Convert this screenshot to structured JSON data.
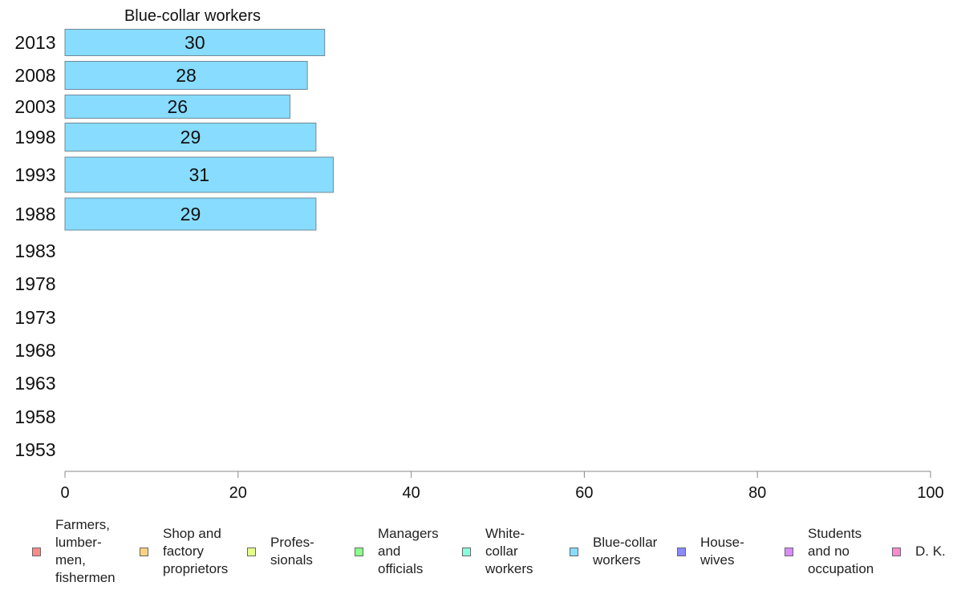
{
  "chart_data": {
    "type": "bar",
    "orientation": "horizontal",
    "title": "Blue-collar workers",
    "categories": [
      "2013",
      "2008",
      "2003",
      "1998",
      "1993",
      "1988",
      "1983",
      "1978",
      "1973",
      "1968",
      "1963",
      "1958",
      "1953"
    ],
    "series": [
      {
        "name": "Blue-collar workers",
        "color": "#87dcff",
        "values": [
          30,
          28,
          26,
          29,
          31,
          29,
          null,
          null,
          null,
          null,
          null,
          null,
          null
        ]
      }
    ],
    "xlim": [
      0,
      100
    ],
    "xticks": [
      "0",
      "20",
      "40",
      "60",
      "80",
      "100"
    ],
    "grid": false,
    "legend_position": "bottom",
    "legend": [
      {
        "label": "Farmers,\nlumber-\nmen,\nfishermen",
        "color": "#ff8a8a"
      },
      {
        "label": "Shop and\nfactory\nproprietors",
        "color": "#ffd27f"
      },
      {
        "label": "Profes-\nsionals",
        "color": "#e6ff8a"
      },
      {
        "label": "Managers\nand\nofficials",
        "color": "#8aff8a"
      },
      {
        "label": "White-\ncollar\nworkers",
        "color": "#8affdc"
      },
      {
        "label": "Blue-collar\nworkers",
        "color": "#87dcff"
      },
      {
        "label": "House-\nwives",
        "color": "#8a8aff"
      },
      {
        "label": "Students\nand no\noccupation",
        "color": "#dc8aff"
      },
      {
        "label": "D. K.",
        "color": "#ff8ad2"
      }
    ]
  }
}
